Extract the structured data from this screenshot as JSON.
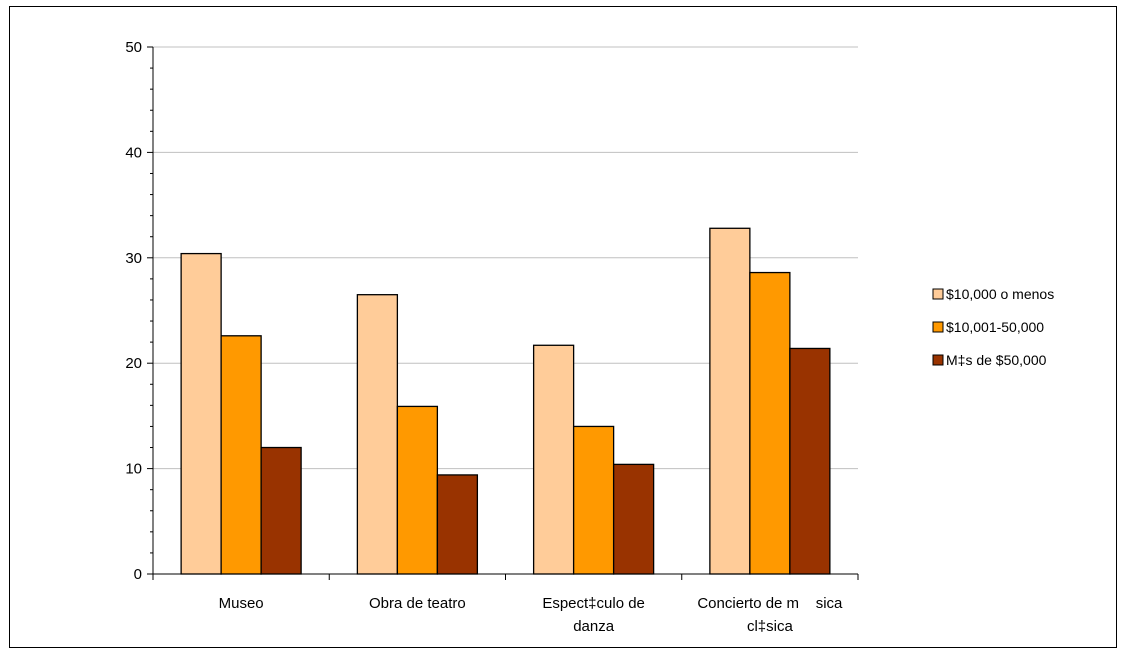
{
  "chart_data": {
    "type": "bar",
    "title": "",
    "xlabel": "",
    "ylabel": "",
    "ylim": [
      0,
      50
    ],
    "yticks": [
      0,
      10,
      20,
      30,
      40,
      50
    ],
    "categories": [
      [
        "Museo"
      ],
      [
        "Obra de teatro"
      ],
      [
        "Espect‡culo de",
        "danza"
      ],
      [
        "Concierto de m    sica",
        "cl‡sica"
      ]
    ],
    "series": [
      {
        "name": "$10,000 o menos",
        "color": "#FFCC99",
        "values": [
          30.4,
          26.5,
          21.7,
          32.8
        ]
      },
      {
        "name": "$10,001-50,000",
        "color": "#FF9900",
        "values": [
          22.6,
          15.9,
          14.0,
          28.6
        ]
      },
      {
        "name": "M‡s de $50,000",
        "color": "#993300",
        "values": [
          12.0,
          9.4,
          10.4,
          21.4
        ]
      }
    ],
    "grid": true,
    "legend_position": "right"
  }
}
